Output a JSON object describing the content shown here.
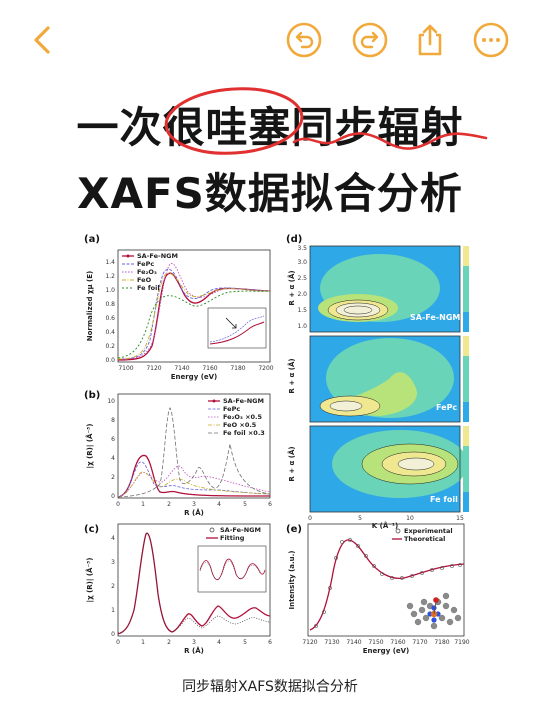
{
  "colors": {
    "accent": "#F2A93B",
    "title_text": "#151515",
    "highlight_red": "#E03030"
  },
  "toolbar": {
    "back_icon": "chevron-left-icon",
    "undo_icon": "undo-icon",
    "redo_icon": "redo-icon",
    "share_icon": "share-icon",
    "more_icon": "more-icon"
  },
  "title": {
    "line1": "一次很哇塞同步辐射",
    "line2": "XAFS数据拟合分析"
  },
  "figure": {
    "panel_a": {
      "label": "(a)",
      "legend": [
        "SA-Fe-NGM",
        "FePc",
        "Fe₂O₃",
        "FeO",
        "Fe foil"
      ],
      "xlabel": "Energy (eV)",
      "ylabel": "Normalized χμ (E)",
      "xticks": [
        "7100",
        "7120",
        "7140",
        "7160",
        "7180",
        "7200"
      ],
      "yticks": [
        "0.0",
        "0.2",
        "0.4",
        "0.6",
        "0.8",
        "1.0",
        "1.2",
        "1.4"
      ]
    },
    "panel_b": {
      "label": "(b)",
      "legend": [
        "SA-Fe-NGM",
        "FePc",
        "Fe₂O₃ ×0.5",
        "FeO ×0.5",
        "Fe foil ×0.3"
      ],
      "xlabel": "R (Å)",
      "ylabel": "|χ (R)| (Å⁻³)",
      "xticks": [
        "0",
        "1",
        "2",
        "3",
        "4",
        "5",
        "6"
      ],
      "yticks": [
        "0",
        "2",
        "4",
        "6",
        "8",
        "10"
      ]
    },
    "panel_c": {
      "label": "(c)",
      "legend": [
        "SA-Fe-NGM",
        "Fitting"
      ],
      "xlabel": "R (Å)",
      "ylabel": "|χ (R)| (Å⁻³)",
      "xticks": [
        "0",
        "1",
        "2",
        "3",
        "4",
        "5",
        "6"
      ],
      "yticks": [
        "0",
        "1",
        "2",
        "3",
        "4"
      ]
    },
    "panel_d": {
      "label": "(d)",
      "maps": [
        "SA-Fe-NGM",
        "FePc",
        "Fe foil"
      ],
      "xlabel": "K (Å⁻¹)",
      "ylabel": "R + α (Å)",
      "xticks": [
        "0",
        "5",
        "10",
        "15"
      ],
      "yticks": [
        "1.0",
        "1.5",
        "2.0",
        "2.5",
        "3.0",
        "3.5"
      ]
    },
    "panel_e": {
      "label": "(e)",
      "legend": [
        "Experimental",
        "Theoretical"
      ],
      "xlabel": "Energy (eV)",
      "ylabel": "Intensity (a.u.)",
      "xticks": [
        "7120",
        "7130",
        "7140",
        "7150",
        "7160",
        "7170",
        "7180",
        "7190"
      ]
    }
  },
  "caption": "同步辐射XAFS数据拟合分析"
}
